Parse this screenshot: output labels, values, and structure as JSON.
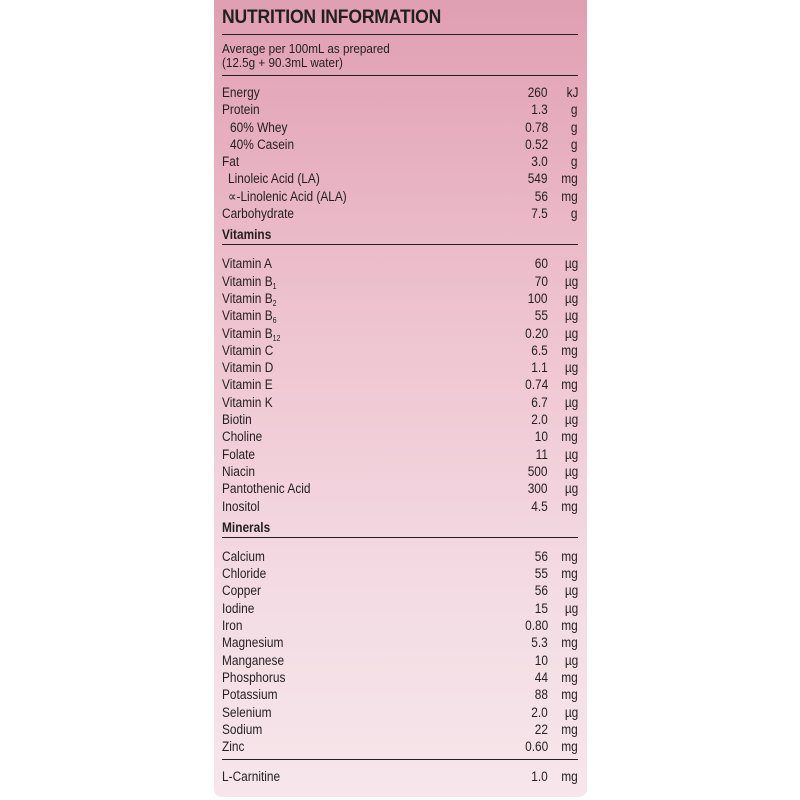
{
  "title": "NUTRITION INFORMATION",
  "subtitle_line1": "Average per 100mL as prepared",
  "subtitle_line2": "(12.5g + 90.3mL water)",
  "colors": {
    "panel_top": "#e09fb3",
    "panel_bottom": "#f6e6eb",
    "text": "#231f20"
  },
  "sections": [
    {
      "heading": "",
      "rows": [
        {
          "label": "Energy",
          "value": "260",
          "unit": "kJ",
          "indent": 0
        },
        {
          "label": "Protein",
          "value": "1.3",
          "unit": "g",
          "indent": 0
        },
        {
          "label": "60% Whey",
          "value": "0.78",
          "unit": "g",
          "indent": 2
        },
        {
          "label": "40% Casein",
          "value": "0.52",
          "unit": "g",
          "indent": 2
        },
        {
          "label": "Fat",
          "value": "3.0",
          "unit": "g",
          "indent": 0
        },
        {
          "label": "Linoleic Acid (LA)",
          "value": "549",
          "unit": "mg",
          "indent": 1
        },
        {
          "label": "∝-Linolenic Acid (ALA)",
          "value": "56",
          "unit": "mg",
          "indent": 1
        },
        {
          "label": "Carbohydrate",
          "value": "7.5",
          "unit": "g",
          "indent": 0
        }
      ]
    },
    {
      "heading": "Vitamins",
      "rows": [
        {
          "label": "Vitamin A",
          "value": "60",
          "unit": "µg"
        },
        {
          "label": "Vitamin B",
          "sub": "1",
          "value": "70",
          "unit": "µg"
        },
        {
          "label": "Vitamin B",
          "sub": "2",
          "value": "100",
          "unit": "µg"
        },
        {
          "label": "Vitamin B",
          "sub": "6",
          "value": "55",
          "unit": "µg"
        },
        {
          "label": "Vitamin B",
          "sub": "12",
          "value": "0.20",
          "unit": "µg"
        },
        {
          "label": "Vitamin C",
          "value": "6.5",
          "unit": "mg"
        },
        {
          "label": "Vitamin D",
          "value": "1.1",
          "unit": "µg"
        },
        {
          "label": "Vitamin E",
          "value": "0.74",
          "unit": "mg"
        },
        {
          "label": "Vitamin K",
          "value": "6.7",
          "unit": "µg"
        },
        {
          "label": "Biotin",
          "value": "2.0",
          "unit": "µg"
        },
        {
          "label": "Choline",
          "value": "10",
          "unit": "mg"
        },
        {
          "label": "Folate",
          "value": "11",
          "unit": "µg"
        },
        {
          "label": "Niacin",
          "value": "500",
          "unit": "µg"
        },
        {
          "label": "Pantothenic Acid",
          "value": "300",
          "unit": "µg"
        },
        {
          "label": "Inositol",
          "value": "4.5",
          "unit": "mg"
        }
      ]
    },
    {
      "heading": "Minerals",
      "rows": [
        {
          "label": "Calcium",
          "value": "56",
          "unit": "mg"
        },
        {
          "label": "Chloride",
          "value": "55",
          "unit": "mg"
        },
        {
          "label": "Copper",
          "value": "56",
          "unit": "µg"
        },
        {
          "label": "Iodine",
          "value": "15",
          "unit": "µg"
        },
        {
          "label": "Iron",
          "value": "0.80",
          "unit": "mg"
        },
        {
          "label": "Magnesium",
          "value": "5.3",
          "unit": "mg"
        },
        {
          "label": "Manganese",
          "value": "10",
          "unit": "µg"
        },
        {
          "label": "Phosphorus",
          "value": "44",
          "unit": "mg"
        },
        {
          "label": "Potassium",
          "value": "88",
          "unit": "mg"
        },
        {
          "label": "Selenium",
          "value": "2.0",
          "unit": "µg"
        },
        {
          "label": "Sodium",
          "value": "22",
          "unit": "mg"
        },
        {
          "label": "Zinc",
          "value": "0.60",
          "unit": "mg"
        }
      ]
    },
    {
      "heading": "",
      "rows": [
        {
          "label": "L-Carnitine",
          "value": "1.0",
          "unit": "mg"
        }
      ]
    }
  ]
}
